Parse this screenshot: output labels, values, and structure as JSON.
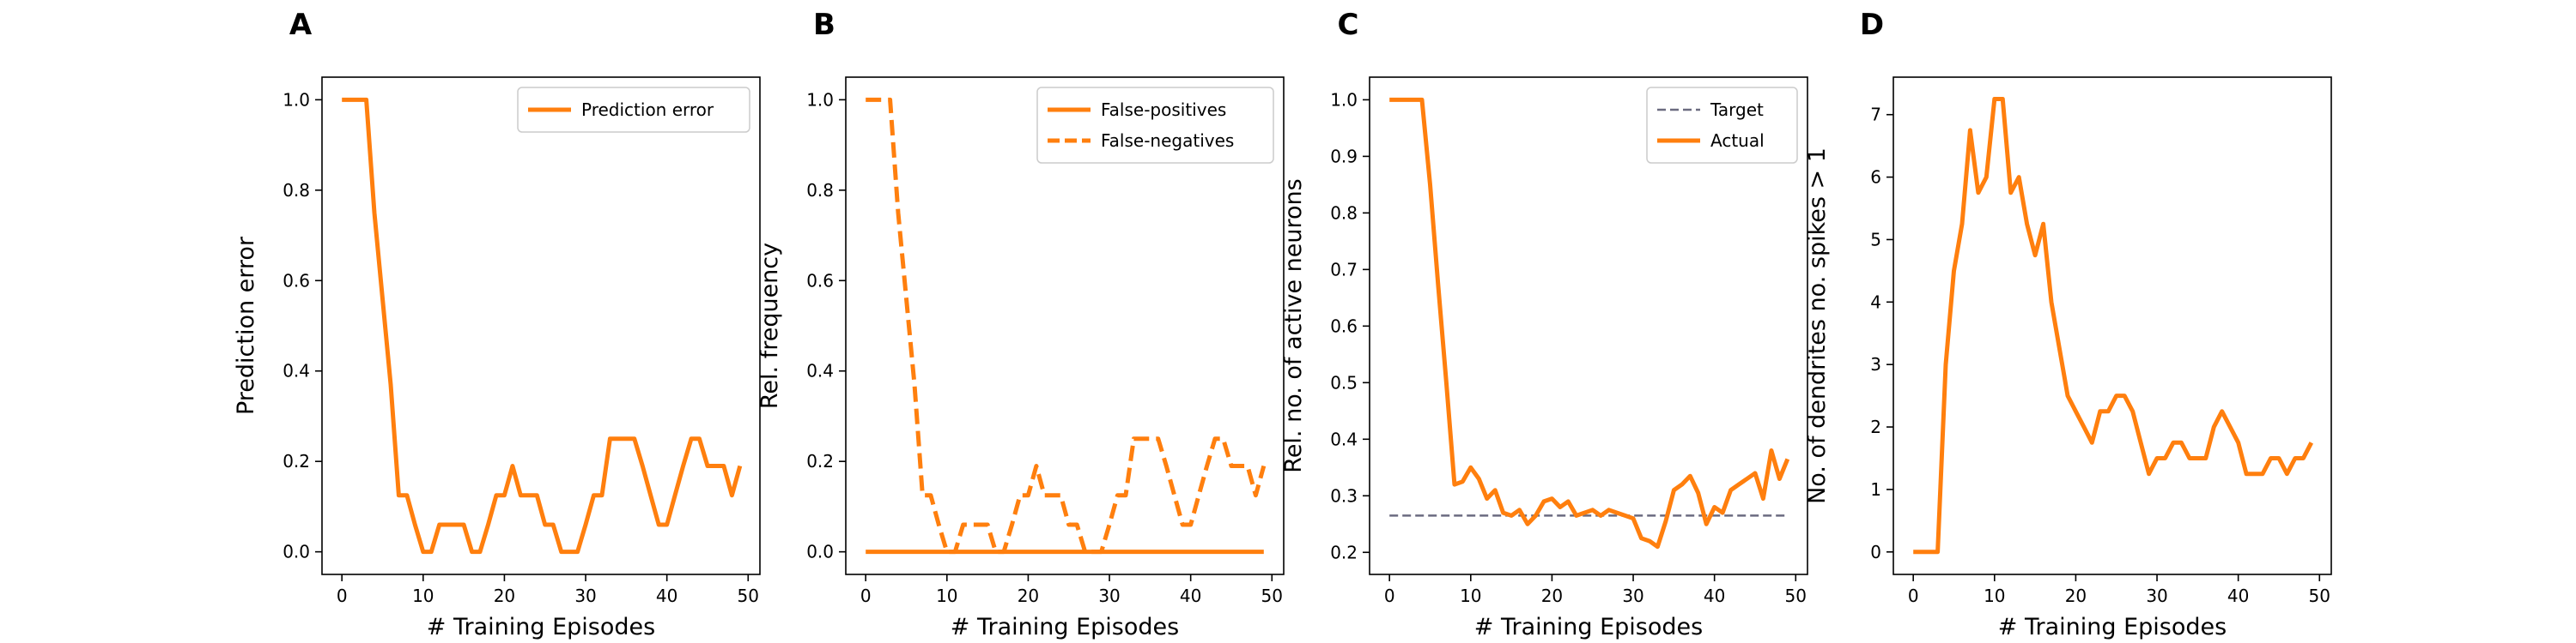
{
  "panel_labels": [
    "A",
    "B",
    "C",
    "D"
  ],
  "colors": {
    "orange": "#ff7f0e",
    "target": "#6b6b80",
    "axis": "#000000"
  },
  "chart_data": [
    {
      "type": "line",
      "panel": "A",
      "xlabel": "# Training Episodes",
      "ylabel": "Prediction error",
      "xlim": [
        -2.45,
        51.45
      ],
      "ylim": [
        -0.05,
        1.05
      ],
      "xticks": [
        0,
        10,
        20,
        30,
        40,
        50
      ],
      "yticks": [
        0.0,
        0.2,
        0.4,
        0.6,
        0.8,
        1.0
      ],
      "ytick_labels": [
        "0.0",
        "0.2",
        "0.4",
        "0.6",
        "0.8",
        "1.0"
      ],
      "legend_position": "top-right",
      "series": [
        {
          "name": "Prediction error",
          "style": "solid",
          "x": [
            0,
            1,
            2,
            3,
            4,
            5,
            6,
            7,
            8,
            9,
            10,
            11,
            12,
            13,
            14,
            15,
            16,
            17,
            18,
            19,
            20,
            21,
            22,
            23,
            24,
            25,
            26,
            27,
            28,
            29,
            30,
            31,
            32,
            33,
            34,
            35,
            36,
            37,
            38,
            39,
            40,
            41,
            42,
            43,
            44,
            45,
            46,
            47,
            48,
            49
          ],
          "y": [
            1.0,
            1.0,
            1.0,
            1.0,
            0.75,
            0.56,
            0.37,
            0.125,
            0.125,
            0.06,
            0.0,
            0.0,
            0.06,
            0.06,
            0.06,
            0.06,
            0.0,
            0.0,
            0.06,
            0.125,
            0.125,
            0.19,
            0.125,
            0.125,
            0.125,
            0.06,
            0.06,
            0.0,
            0.0,
            0.0,
            0.06,
            0.125,
            0.125,
            0.25,
            0.25,
            0.25,
            0.25,
            0.19,
            0.125,
            0.06,
            0.06,
            0.125,
            0.19,
            0.25,
            0.25,
            0.19,
            0.19,
            0.19,
            0.125,
            0.19
          ]
        }
      ]
    },
    {
      "type": "line",
      "panel": "B",
      "xlabel": "# Training Episodes",
      "ylabel": "Rel. frequency",
      "xlim": [
        -2.45,
        51.45
      ],
      "ylim": [
        -0.05,
        1.05
      ],
      "xticks": [
        0,
        10,
        20,
        30,
        40,
        50
      ],
      "yticks": [
        0.0,
        0.2,
        0.4,
        0.6,
        0.8,
        1.0
      ],
      "ytick_labels": [
        "0.0",
        "0.2",
        "0.4",
        "0.6",
        "0.8",
        "1.0"
      ],
      "legend_position": "top-right",
      "series": [
        {
          "name": "False-positives",
          "style": "solid",
          "x": [
            0,
            1,
            2,
            3,
            4,
            5,
            6,
            7,
            8,
            9,
            10,
            11,
            12,
            13,
            14,
            15,
            16,
            17,
            18,
            19,
            20,
            21,
            22,
            23,
            24,
            25,
            26,
            27,
            28,
            29,
            30,
            31,
            32,
            33,
            34,
            35,
            36,
            37,
            38,
            39,
            40,
            41,
            42,
            43,
            44,
            45,
            46,
            47,
            48,
            49
          ],
          "y": [
            0,
            0,
            0,
            0,
            0,
            0,
            0,
            0,
            0,
            0,
            0,
            0,
            0,
            0,
            0,
            0,
            0,
            0,
            0,
            0,
            0,
            0,
            0,
            0,
            0,
            0,
            0,
            0,
            0,
            0,
            0,
            0,
            0,
            0,
            0,
            0,
            0,
            0,
            0,
            0,
            0,
            0,
            0,
            0,
            0,
            0,
            0,
            0,
            0,
            0
          ]
        },
        {
          "name": "False-negatives",
          "style": "dashed",
          "x": [
            0,
            1,
            2,
            3,
            4,
            5,
            6,
            7,
            8,
            9,
            10,
            11,
            12,
            13,
            14,
            15,
            16,
            17,
            18,
            19,
            20,
            21,
            22,
            23,
            24,
            25,
            26,
            27,
            28,
            29,
            30,
            31,
            32,
            33,
            34,
            35,
            36,
            37,
            38,
            39,
            40,
            41,
            42,
            43,
            44,
            45,
            46,
            47,
            48,
            49
          ],
          "y": [
            1.0,
            1.0,
            1.0,
            1.0,
            0.75,
            0.56,
            0.37,
            0.125,
            0.125,
            0.06,
            0.0,
            0.0,
            0.06,
            0.06,
            0.06,
            0.06,
            0.0,
            0.0,
            0.06,
            0.125,
            0.125,
            0.19,
            0.125,
            0.125,
            0.125,
            0.06,
            0.06,
            0.0,
            0.0,
            0.0,
            0.06,
            0.125,
            0.125,
            0.25,
            0.25,
            0.25,
            0.25,
            0.19,
            0.125,
            0.06,
            0.06,
            0.125,
            0.19,
            0.25,
            0.25,
            0.19,
            0.19,
            0.19,
            0.125,
            0.19
          ]
        }
      ]
    },
    {
      "type": "line",
      "panel": "C",
      "xlabel": "# Training Episodes",
      "ylabel": "Rel. no. of active neurons",
      "xlim": [
        -2.45,
        51.45
      ],
      "ylim": [
        0.161,
        1.04
      ],
      "xticks": [
        0,
        10,
        20,
        30,
        40,
        50
      ],
      "yticks": [
        0.2,
        0.3,
        0.4,
        0.5,
        0.6,
        0.7,
        0.8,
        0.9,
        1.0
      ],
      "ytick_labels": [
        "0.2",
        "0.3",
        "0.4",
        "0.5",
        "0.6",
        "0.7",
        "0.8",
        "0.9",
        "1.0"
      ],
      "legend_position": "top-right",
      "series": [
        {
          "name": "Target",
          "style": "dashed-thin",
          "x": [
            0,
            49
          ],
          "y": [
            0.265,
            0.265
          ]
        },
        {
          "name": "Actual",
          "style": "solid",
          "x": [
            0,
            1,
            2,
            3,
            4,
            5,
            6,
            7,
            8,
            9,
            10,
            11,
            12,
            13,
            14,
            15,
            16,
            17,
            18,
            19,
            20,
            21,
            22,
            23,
            24,
            25,
            26,
            27,
            28,
            29,
            30,
            31,
            32,
            33,
            34,
            35,
            36,
            37,
            38,
            39,
            40,
            41,
            42,
            43,
            44,
            45,
            46,
            47,
            48,
            49
          ],
          "y": [
            1.0,
            1.0,
            1.0,
            1.0,
            1.0,
            0.85,
            0.67,
            0.5,
            0.32,
            0.325,
            0.35,
            0.33,
            0.295,
            0.31,
            0.27,
            0.265,
            0.275,
            0.25,
            0.265,
            0.29,
            0.295,
            0.28,
            0.29,
            0.265,
            0.27,
            0.275,
            0.265,
            0.275,
            0.27,
            0.265,
            0.26,
            0.225,
            0.22,
            0.21,
            0.255,
            0.31,
            0.32,
            0.335,
            0.305,
            0.25,
            0.28,
            0.27,
            0.31,
            0.32,
            0.33,
            0.34,
            0.295,
            0.38,
            0.33,
            0.365
          ]
        }
      ]
    },
    {
      "type": "line",
      "panel": "D",
      "xlabel": "# Training Episodes",
      "ylabel": "No. of dendrites no. spikes > 1",
      "xlim": [
        -2.45,
        51.45
      ],
      "ylim": [
        -0.36,
        7.6
      ],
      "xticks": [
        0,
        10,
        20,
        30,
        40,
        50
      ],
      "yticks": [
        0,
        1,
        2,
        3,
        4,
        5,
        6,
        7
      ],
      "ytick_labels": [
        "0",
        "1",
        "2",
        "3",
        "4",
        "5",
        "6",
        "7"
      ],
      "legend_position": "",
      "series": [
        {
          "style": "solid",
          "x": [
            0,
            1,
            2,
            3,
            4,
            5,
            6,
            7,
            8,
            9,
            10,
            11,
            12,
            13,
            14,
            15,
            16,
            17,
            18,
            19,
            20,
            21,
            22,
            23,
            24,
            25,
            26,
            27,
            28,
            29,
            30,
            31,
            32,
            33,
            34,
            35,
            36,
            37,
            38,
            39,
            40,
            41,
            42,
            43,
            44,
            45,
            46,
            47,
            48,
            49
          ],
          "y": [
            0,
            0,
            0,
            0,
            3.0,
            4.5,
            5.25,
            6.75,
            5.75,
            6.0,
            7.25,
            7.25,
            5.75,
            6.0,
            5.25,
            4.75,
            5.25,
            4.0,
            3.25,
            2.5,
            2.25,
            2.0,
            1.75,
            2.25,
            2.25,
            2.5,
            2.5,
            2.25,
            1.75,
            1.25,
            1.5,
            1.5,
            1.75,
            1.75,
            1.5,
            1.5,
            1.5,
            2.0,
            2.25,
            2.0,
            1.75,
            1.25,
            1.25,
            1.25,
            1.5,
            1.5,
            1.25,
            1.5,
            1.5,
            1.75
          ]
        }
      ]
    }
  ]
}
